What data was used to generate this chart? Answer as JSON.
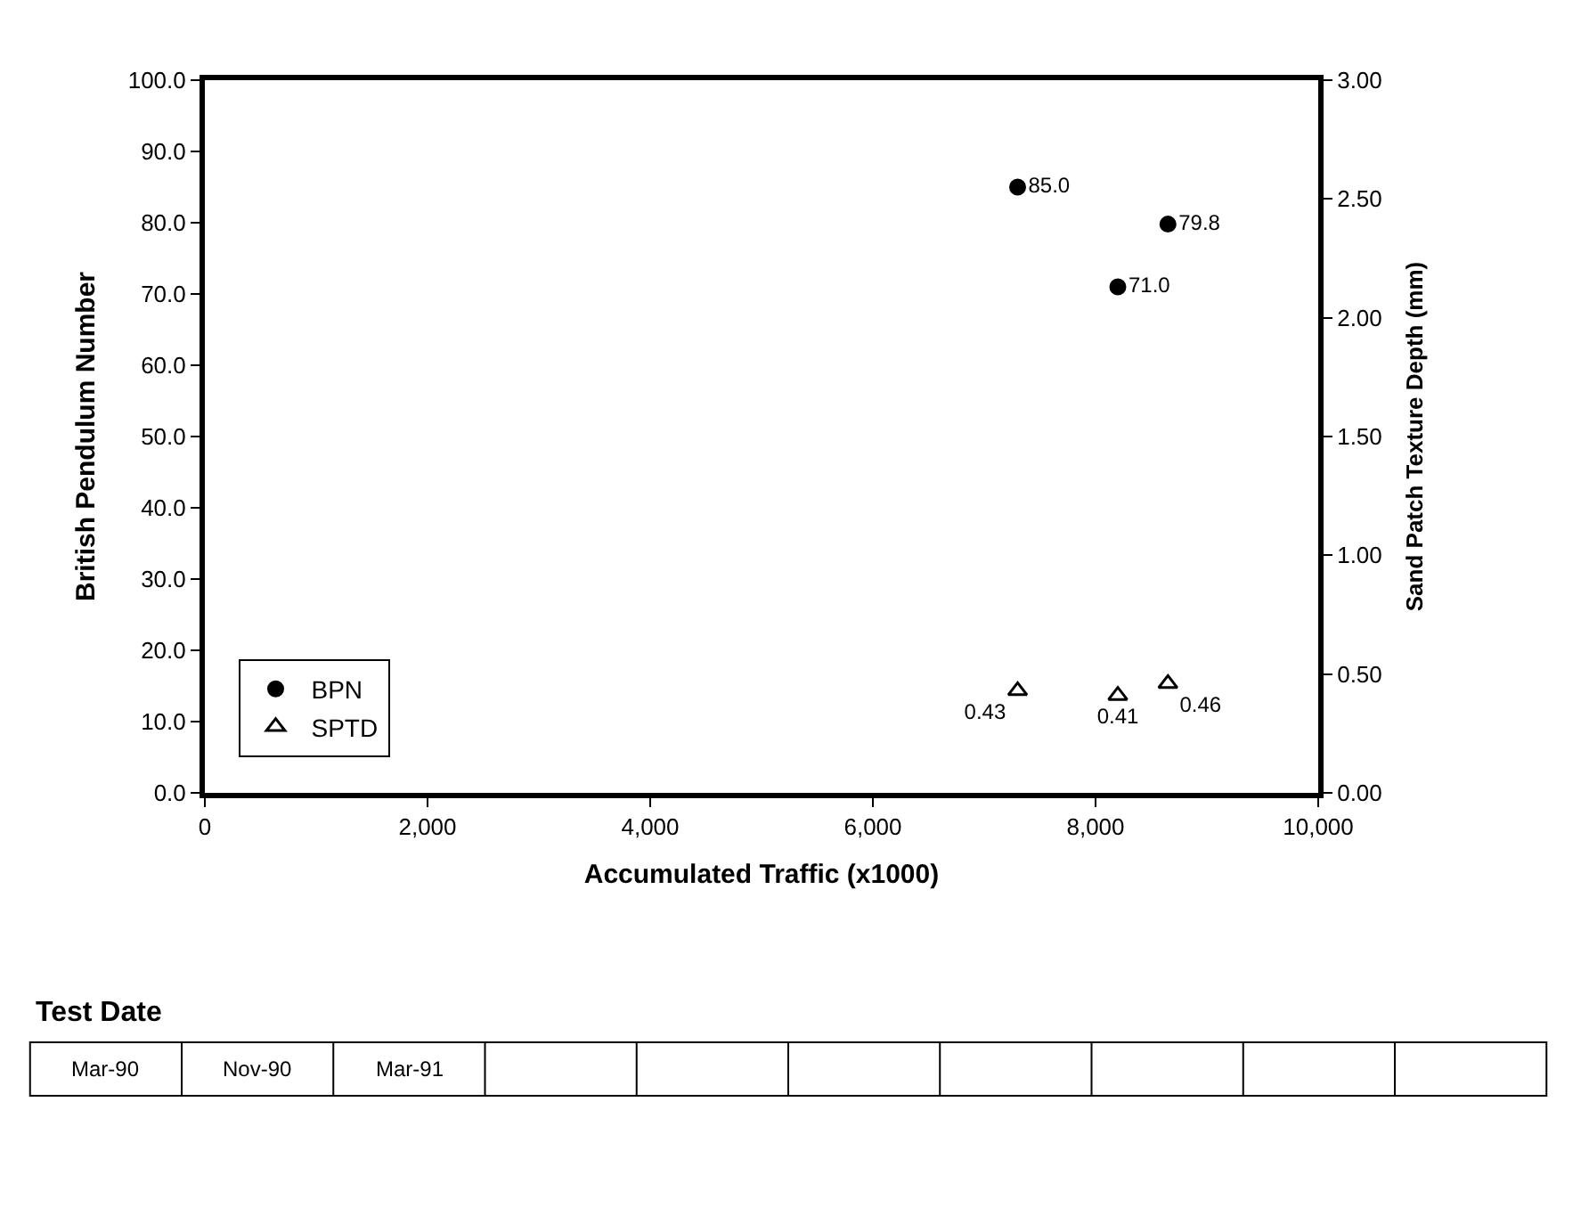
{
  "chart_data": {
    "type": "scatter",
    "xlabel": "Accumulated Traffic (x1000)",
    "ylabel": "British Pendulum Number",
    "y2label": "Sand Patch Texture Depth (mm)",
    "series": [
      {
        "name": "BPN",
        "color": "#000000",
        "marker": "circle",
        "x": [
          7300,
          8200,
          8650
        ],
        "values": [
          85.0,
          71.0,
          79.8
        ],
        "value_labels": [
          "85.0",
          "71.0",
          "79.8"
        ]
      },
      {
        "name": "SPTD",
        "color": "#000000",
        "marker": "triangle",
        "axis": "y2",
        "x": [
          7300,
          8200,
          8650
        ],
        "values": [
          0.43,
          0.41,
          0.46
        ],
        "value_labels": [
          "0.43",
          "0.41",
          "0.46"
        ]
      }
    ],
    "xlim": [
      0,
      10000
    ],
    "xticks": [
      0,
      {
        "value": 2000,
        "label": "2,000"
      },
      {
        "value": 4000,
        "label": "4,000"
      },
      {
        "value": 6000,
        "label": "6,000"
      },
      {
        "value": 8000,
        "label": "8,000"
      },
      {
        "value": 10000,
        "label": "10,000"
      }
    ],
    "ylim": [
      0,
      100
    ],
    "yticks": [
      {
        "value": 0,
        "label": "0.0"
      },
      {
        "value": 10,
        "label": "10.0"
      },
      {
        "value": 20,
        "label": "20.0"
      },
      {
        "value": 30,
        "label": "30.0"
      },
      {
        "value": 40,
        "label": "40.0"
      },
      {
        "value": 50,
        "label": "50.0"
      },
      {
        "value": 60,
        "label": "60.0"
      },
      {
        "value": 70,
        "label": "70.0"
      },
      {
        "value": 80,
        "label": "80.0"
      },
      {
        "value": 90,
        "label": "90.0"
      },
      {
        "value": 100,
        "label": "100.0"
      }
    ],
    "y2lim": [
      0,
      3
    ],
    "y2ticks": [
      {
        "value": 0,
        "label": "0.00"
      },
      {
        "value": 0.5,
        "label": "0.50"
      },
      {
        "value": 1,
        "label": "1.00"
      },
      {
        "value": 1.5,
        "label": "1.50"
      },
      {
        "value": 2,
        "label": "2.00"
      },
      {
        "value": 2.5,
        "label": "2.50"
      },
      {
        "value": 3,
        "label": "3.00"
      }
    ],
    "legend": "bottom left",
    "annotations": [
      "Test Date",
      "Mar-90",
      "Nov-90",
      "Mar-91"
    ]
  }
}
